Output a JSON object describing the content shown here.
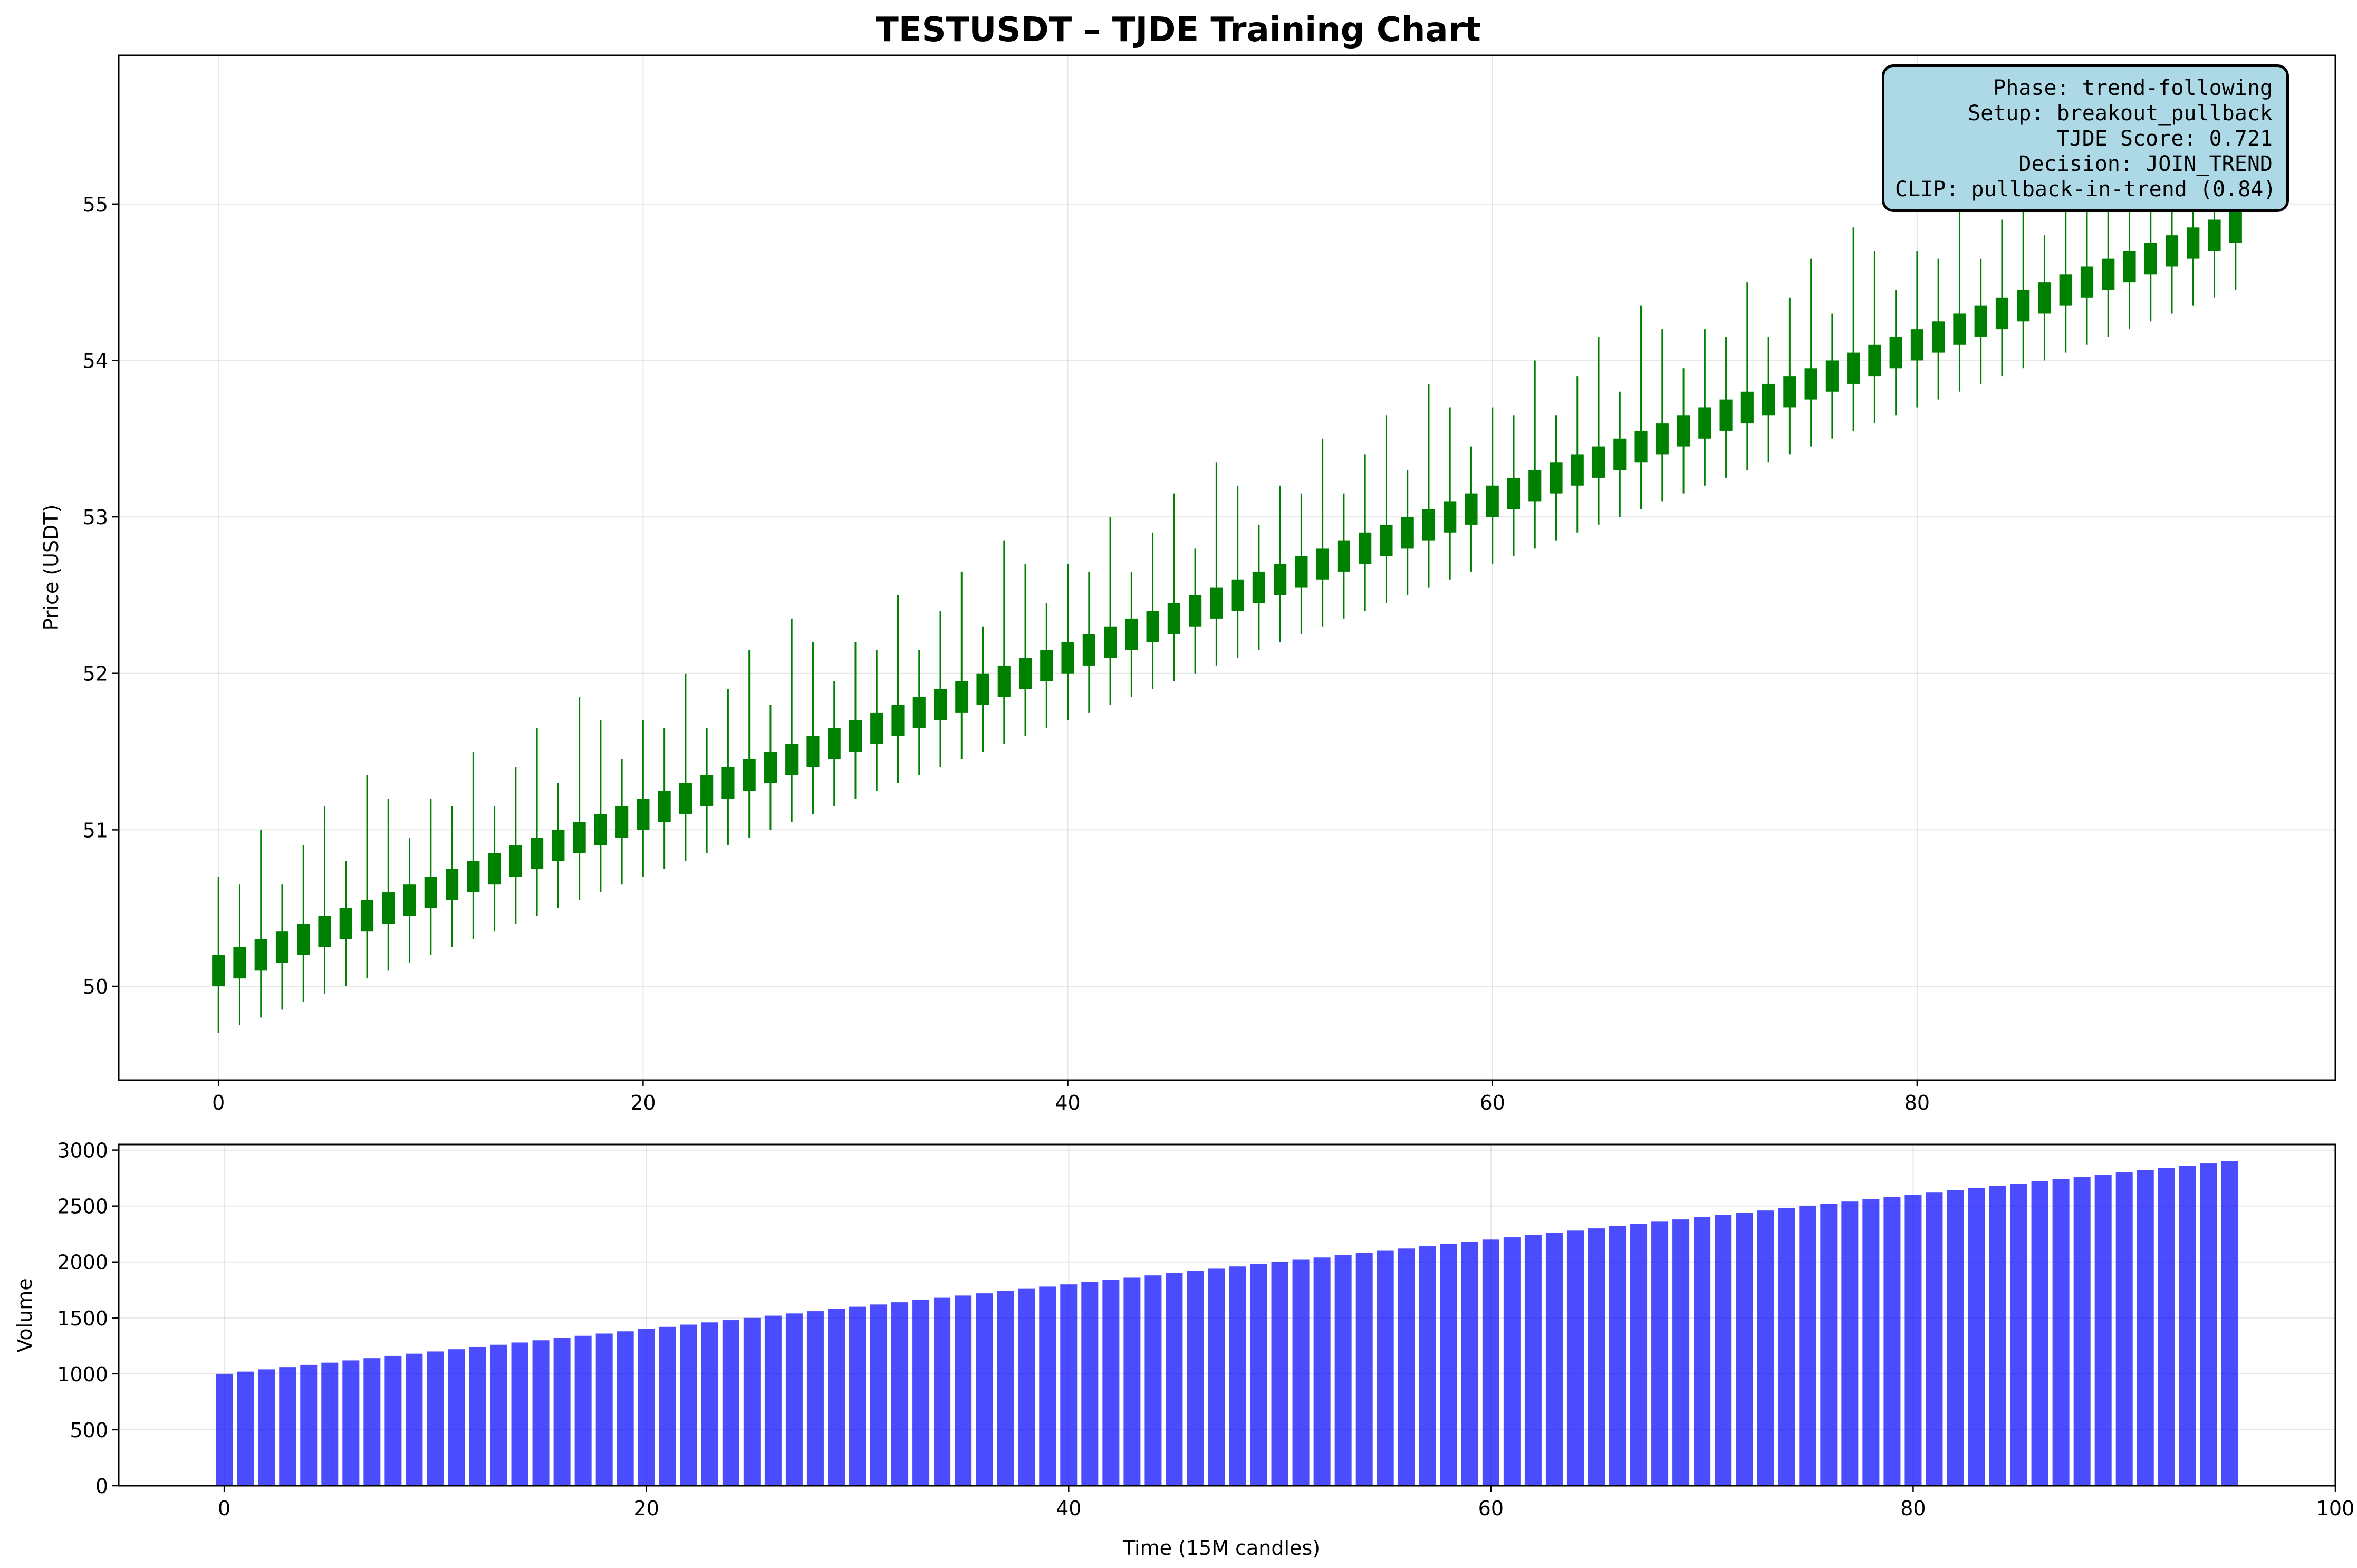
{
  "chart_data": [
    {
      "type": "candlestick",
      "title": "TESTUSDT – TJDE Training Chart",
      "xlabel": "",
      "ylabel": "Price (USDT)",
      "xlim": [
        -4.7,
        99.7
      ],
      "ylim": [
        49.4,
        55.95
      ],
      "xticks": [
        0,
        20,
        40,
        60,
        80
      ],
      "yticks": [
        50,
        51,
        52,
        53,
        54,
        55
      ],
      "grid": true,
      "candle_color": "#008000",
      "x": [
        0,
        95
      ],
      "candles": {
        "count": 96,
        "open_start": 50.0,
        "open_step": 0.05,
        "close_offset": 0.2,
        "low_offset": -0.3,
        "high_offset_pattern": [
          0.5,
          0.4,
          0.7,
          0.3,
          0.5,
          0.7,
          0.3,
          0.8,
          0.6,
          0.3
        ]
      },
      "annotation": [
        "Phase: trend-following",
        "Setup: breakout_pullback",
        "TJDE Score: 0.721",
        "Decision: JOIN_TREND",
        "CLIP: pullback-in-trend (0.84)"
      ]
    },
    {
      "type": "bar",
      "title": "",
      "xlabel": "Time (15M candles)",
      "ylabel": "Volume",
      "xlim": [
        -5,
        100
      ],
      "ylim": [
        0,
        3050
      ],
      "xticks": [
        0,
        20,
        40,
        60,
        80,
        100
      ],
      "yticks": [
        0,
        500,
        1000,
        1500,
        2000,
        2500,
        3000
      ],
      "grid": true,
      "bar_color": "#0000ff",
      "values_start": 1000,
      "values_step": 20,
      "count": 96
    }
  ],
  "info_box": {
    "phase": "Phase: trend-following",
    "setup": "Setup: breakout_pullback",
    "score": "TJDE Score: 0.721",
    "decision": "Decision: JOIN_TREND",
    "clip": "CLIP: pullback-in-trend (0.84)"
  }
}
